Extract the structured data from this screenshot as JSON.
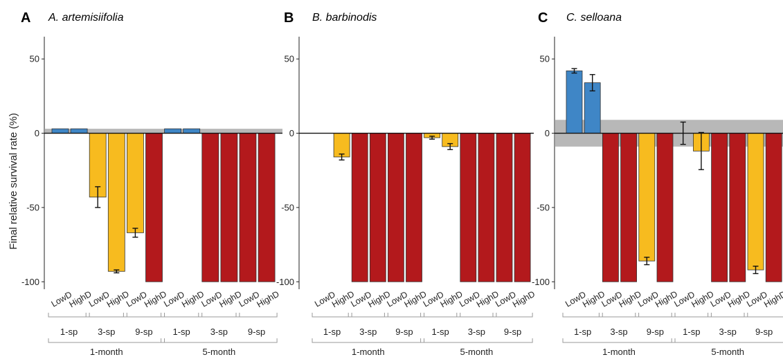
{
  "figure": {
    "y_axis_label": "Final relative survival rate (%)",
    "y_ticks": [
      "50",
      "0",
      "-50",
      "-100"
    ],
    "group_labels": [
      "1-sp",
      "3-sp",
      "9-sp"
    ],
    "period_labels": [
      "1-month",
      "5-month"
    ],
    "density_labels": [
      "LowD",
      "HighD"
    ]
  },
  "colors": {
    "positive": "#3f86c6",
    "intermediate": "#f7bb1f",
    "extinct": "#b3191c",
    "band": "#9a9a9a"
  },
  "chart_data": [
    {
      "type": "bar",
      "panel": "A",
      "title": "A. artemisiifolia",
      "ylabel": "Final relative survival rate (%)",
      "ylim": [
        -105,
        65
      ],
      "categories": [
        "LowD",
        "HighD",
        "LowD",
        "HighD",
        "LowD",
        "HighD",
        "LowD",
        "HighD",
        "LowD",
        "HighD",
        "LowD",
        "HighD"
      ],
      "values": [
        3,
        3,
        -43,
        -93,
        -67,
        -100,
        3,
        3,
        -100,
        -100,
        -100,
        -100
      ],
      "errors": [
        0,
        0,
        7,
        1,
        3,
        0,
        0,
        0,
        0,
        0,
        0,
        0
      ],
      "bar_colors": [
        "positive",
        "positive",
        "intermediate",
        "intermediate",
        "intermediate",
        "extinct",
        "positive",
        "positive",
        "extinct",
        "extinct",
        "extinct",
        "extinct"
      ],
      "band": [
        0,
        3
      ]
    },
    {
      "type": "bar",
      "panel": "B",
      "title": "B. barbinodis",
      "ylabel": "",
      "ylim": [
        -105,
        65
      ],
      "categories": [
        "LowD",
        "HighD",
        "LowD",
        "HighD",
        "LowD",
        "HighD",
        "LowD",
        "HighD",
        "LowD",
        "HighD",
        "LowD",
        "HighD"
      ],
      "values": [
        0,
        -16,
        -100,
        -100,
        -100,
        -100,
        -3,
        -9,
        -100,
        -100,
        -100,
        -100
      ],
      "errors": [
        0,
        2,
        0,
        0,
        0,
        0,
        1,
        2,
        0,
        0,
        0,
        0
      ],
      "bar_colors": [
        "intermediate",
        "intermediate",
        "extinct",
        "extinct",
        "extinct",
        "extinct",
        "intermediate",
        "intermediate",
        "extinct",
        "extinct",
        "extinct",
        "extinct"
      ],
      "band": [
        0,
        0
      ]
    },
    {
      "type": "bar",
      "panel": "C",
      "title": "C. selloana",
      "ylabel": "",
      "ylim": [
        -105,
        65
      ],
      "categories": [
        "LowD",
        "HighD",
        "LowD",
        "HighD",
        "LowD",
        "HighD",
        "LowD",
        "HighD",
        "LowD",
        "HighD",
        "LowD",
        "HighD"
      ],
      "values": [
        42,
        34,
        -100,
        -100,
        -86,
        -100,
        0,
        -12,
        -100,
        -100,
        -92,
        -100
      ],
      "errors": [
        1.5,
        5.5,
        0,
        0,
        2.5,
        0,
        7.5,
        12.5,
        0,
        0,
        2.5,
        0
      ],
      "bar_colors": [
        "positive",
        "positive",
        "extinct",
        "extinct",
        "intermediate",
        "extinct",
        "intermediate",
        "intermediate",
        "extinct",
        "extinct",
        "intermediate",
        "extinct"
      ],
      "band": [
        -9,
        9
      ]
    }
  ]
}
